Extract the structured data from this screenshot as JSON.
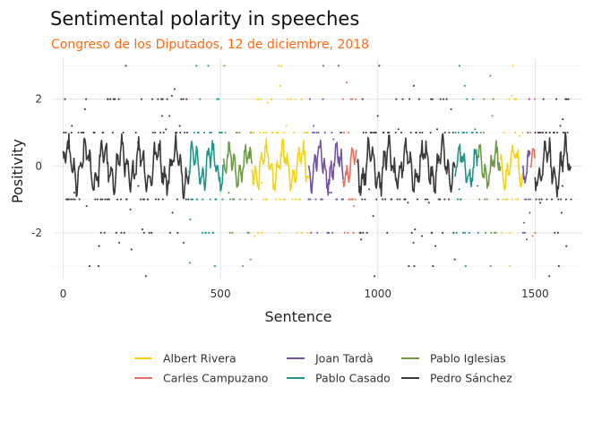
{
  "chart_data": {
    "type": "line",
    "title": "Sentimental polarity in speeches",
    "subtitle": "Congreso de los Diputados, 12 de diciembre, 2018",
    "xlabel": "Sentence",
    "ylabel": "Positivity",
    "xlim": [
      -30,
      1650
    ],
    "ylim": [
      -3.4,
      3.2
    ],
    "x_ticks": [
      0,
      500,
      1000,
      1500
    ],
    "y_ticks": [
      -2,
      0,
      2
    ],
    "x_tick_labels": [
      "0",
      "500",
      "1000",
      "1500"
    ],
    "y_tick_labels": [
      "-2",
      "0",
      "2"
    ],
    "grid": true,
    "legend_position": "bottom",
    "series": [
      {
        "name": "Albert Rivera",
        "color": "#f2d51a",
        "segments": [
          [
            600,
            780
          ],
          [
            1390,
            1460
          ]
        ],
        "amp": 0.8
      },
      {
        "name": "Carles Campuzano",
        "color": "#e8705f",
        "segments": [
          [
            890,
            935
          ],
          [
            1485,
            1500
          ]
        ],
        "amp": 0.7
      },
      {
        "name": "Joan Tardà",
        "color": "#7455a0",
        "segments": [
          [
            780,
            890
          ],
          [
            1460,
            1485
          ]
        ],
        "amp": 0.8
      },
      {
        "name": "Pablo Casado",
        "color": "#1f968b",
        "segments": [
          [
            400,
            510
          ],
          [
            1245,
            1320
          ]
        ],
        "amp": 0.8
      },
      {
        "name": "Pablo Iglesias",
        "color": "#6e9a49",
        "segments": [
          [
            510,
            600
          ],
          [
            1320,
            1390
          ]
        ],
        "amp": 0.7
      },
      {
        "name": "Pedro Sánchez",
        "color": "#3a3a3a",
        "segments": [
          [
            0,
            400
          ],
          [
            935,
            1245
          ],
          [
            1500,
            1615
          ]
        ],
        "amp": 0.9
      }
    ]
  }
}
